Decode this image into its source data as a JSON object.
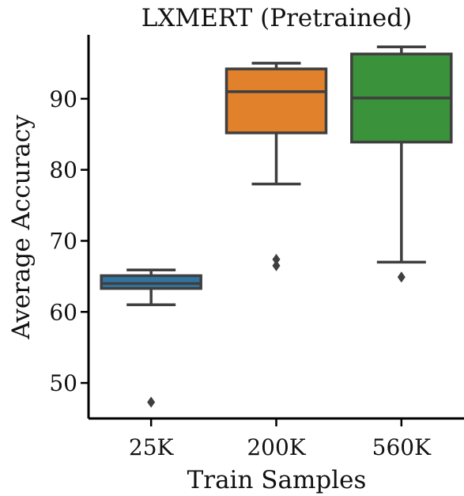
{
  "chart_data": {
    "type": "box",
    "title": "LXMERT (Pretrained)",
    "xlabel": "Train Samples",
    "ylabel": "Average Accuracy",
    "ylim": [
      45,
      99
    ],
    "yticks": [
      50,
      60,
      70,
      80,
      90
    ],
    "grid": false,
    "legend": "none",
    "categories": [
      "25K",
      "200K",
      "560K"
    ],
    "boxes": [
      {
        "category": "25K",
        "whisker_low": 61.0,
        "q1": 63.3,
        "median": 64.0,
        "q3": 65.1,
        "whisker_high": 65.9,
        "outliers": [
          47.3
        ],
        "color": "#3274a1"
      },
      {
        "category": "200K",
        "whisker_low": 78.0,
        "q1": 85.2,
        "median": 91.0,
        "q3": 94.2,
        "whisker_high": 95.0,
        "outliers": [
          66.5,
          67.4
        ],
        "color": "#e1812c"
      },
      {
        "category": "560K",
        "whisker_low": 67.0,
        "q1": 83.9,
        "median": 90.1,
        "q3": 96.3,
        "whisker_high": 97.3,
        "outliers": [
          64.9
        ],
        "color": "#3a923a"
      }
    ]
  }
}
